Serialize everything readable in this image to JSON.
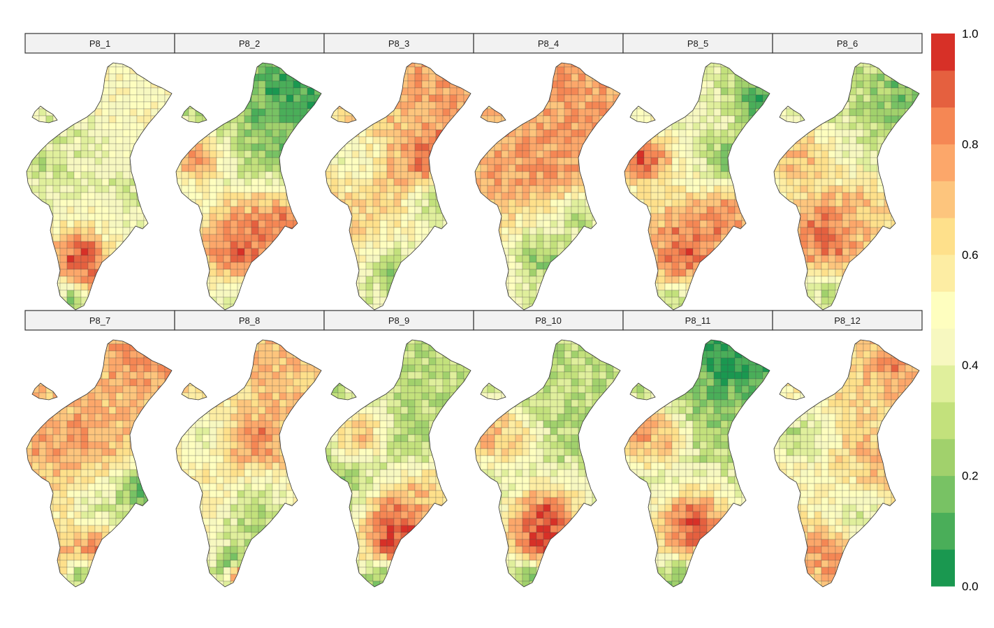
{
  "figure": {
    "panels": [
      {
        "label": "P8_1",
        "pattern": "p1"
      },
      {
        "label": "P8_2",
        "pattern": "p2"
      },
      {
        "label": "P8_3",
        "pattern": "p3"
      },
      {
        "label": "P8_4",
        "pattern": "p4"
      },
      {
        "label": "P8_5",
        "pattern": "p5"
      },
      {
        "label": "P8_6",
        "pattern": "p6"
      },
      {
        "label": "P8_7",
        "pattern": "p7"
      },
      {
        "label": "P8_8",
        "pattern": "p8"
      },
      {
        "label": "P8_9",
        "pattern": "p9"
      },
      {
        "label": "P8_10",
        "pattern": "p10"
      },
      {
        "label": "P8_11",
        "pattern": "p11"
      },
      {
        "label": "P8_12",
        "pattern": "p12"
      }
    ],
    "legend": {
      "range": [
        0.0,
        1.0
      ],
      "ticks": [
        {
          "value": 0.0,
          "label": "0.0"
        },
        {
          "value": 0.2,
          "label": "0.2"
        },
        {
          "value": 0.4,
          "label": "0.4"
        },
        {
          "value": 0.6,
          "label": "0.6"
        },
        {
          "value": 0.8,
          "label": "0.8"
        },
        {
          "value": 1.0,
          "label": "1.0"
        }
      ],
      "colors": [
        "#1a9850",
        "#4aae59",
        "#78c264",
        "#a1d16c",
        "#c3e17c",
        "#e0ef9c",
        "#f7f8c0",
        "#fefebf",
        "#fdeda3",
        "#fee08b",
        "#fdc57d",
        "#fca76a",
        "#f58754",
        "#e5603f",
        "#d73027"
      ]
    }
  }
}
